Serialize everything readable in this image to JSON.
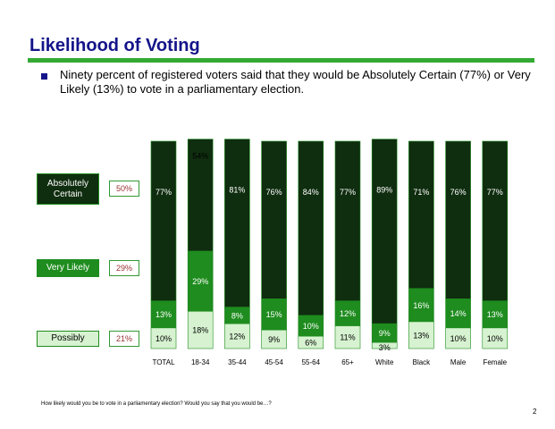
{
  "title": "Likelihood of Voting",
  "bullet": "Ninety percent of registered voters said that they would be Absolutely Certain (77%) or Very Likely (13%) to vote in a parliamentary election.",
  "legend": [
    {
      "label": "Absolutely Certain",
      "value": "50%",
      "color": "#0f2d0f",
      "text_color": "#ffffff"
    },
    {
      "label": "Very Likely",
      "value": "29%",
      "color": "#1e8c1e",
      "text_color": "#ffffff"
    },
    {
      "label": "Possibly",
      "value": "21%",
      "color": "#d6f2d0",
      "text_color": "#000000"
    }
  ],
  "footnote": "How likely would you be to vote in a parliamentary election?  Would you say that you would be…?",
  "page_number": "2",
  "chart_data": {
    "type": "bar",
    "stacked": true,
    "categories": [
      "TOTAL",
      "18-34",
      "35-44",
      "45-54",
      "55-64",
      "65+",
      "White",
      "Black",
      "Male",
      "Female"
    ],
    "series": [
      {
        "name": "Possibly",
        "color": "#d6f2d0",
        "values": [
          10,
          18,
          12,
          9,
          6,
          11,
          3,
          13,
          10,
          10
        ]
      },
      {
        "name": "Very Likely",
        "color": "#1e8c1e",
        "values": [
          13,
          29,
          8,
          15,
          10,
          12,
          9,
          16,
          14,
          13
        ]
      },
      {
        "name": "Absolutely Certain",
        "color": "#0f2d0f",
        "values": [
          77,
          54,
          81,
          76,
          84,
          77,
          89,
          71,
          76,
          77
        ]
      }
    ],
    "ylim": [
      0,
      100
    ],
    "grid": false,
    "legend_position": "left"
  }
}
